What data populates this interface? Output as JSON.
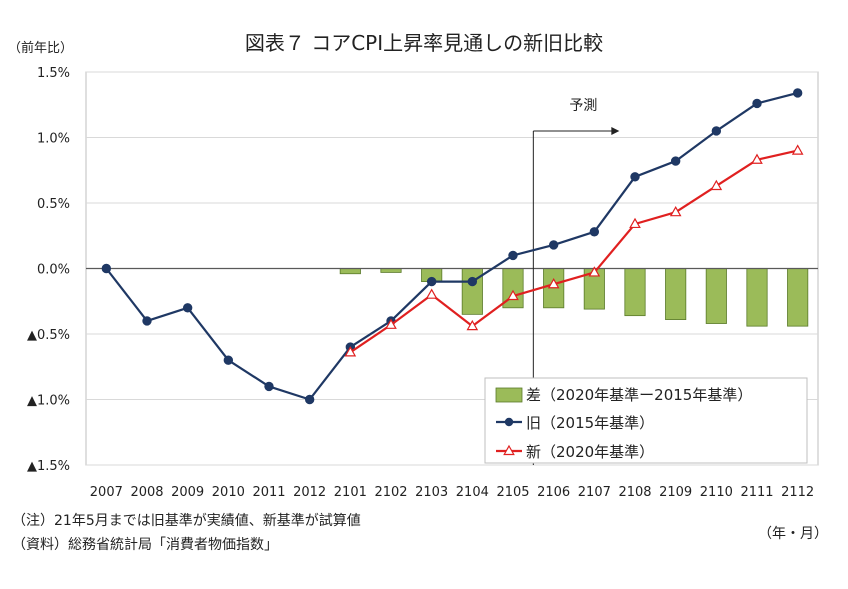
{
  "chart_data": {
    "type": "bar+line",
    "title": "図表７ コアCPI上昇率見通しの新旧比較",
    "ylabel": "（前年比）",
    "xlabel": "（年・月）",
    "categories": [
      "2007",
      "2008",
      "2009",
      "2010",
      "2011",
      "2012",
      "2101",
      "2102",
      "2103",
      "2104",
      "2105",
      "2106",
      "2107",
      "2108",
      "2109",
      "2110",
      "2111",
      "2112"
    ],
    "ylim": [
      -1.5,
      1.5
    ],
    "yticks": [
      1.5,
      1.0,
      0.5,
      0.0,
      -0.5,
      -1.0,
      -1.5
    ],
    "ytick_labels": [
      "1.5%",
      "1.0%",
      "0.5%",
      "0.0%",
      "▲0.5%",
      "▲1.0%",
      "▲1.5%"
    ],
    "grid": true,
    "legend_position": "bottom-right",
    "series": [
      {
        "name": "差（2020年基準ー2015年基準）",
        "type": "bar",
        "color": "#9BBB59",
        "values": [
          null,
          null,
          null,
          null,
          null,
          null,
          -0.04,
          -0.03,
          -0.1,
          -0.35,
          -0.3,
          -0.3,
          -0.31,
          -0.36,
          -0.39,
          -0.42,
          -0.44,
          -0.44
        ]
      },
      {
        "name": "旧（2015年基準）",
        "type": "line",
        "marker": "circle",
        "color": "#1F3864",
        "values": [
          0.0,
          -0.4,
          -0.3,
          -0.7,
          -0.9,
          -1.0,
          -0.6,
          -0.4,
          -0.1,
          -0.1,
          0.1,
          0.18,
          0.28,
          0.7,
          0.82,
          1.05,
          1.26,
          1.34
        ]
      },
      {
        "name": "新（2020年基準）",
        "type": "line",
        "marker": "triangle",
        "color": "#E02020",
        "values": [
          null,
          null,
          null,
          null,
          null,
          null,
          -0.64,
          -0.43,
          -0.2,
          -0.44,
          -0.21,
          -0.12,
          -0.03,
          0.34,
          0.43,
          0.63,
          0.83,
          0.9
        ]
      }
    ],
    "annotations": [
      {
        "text": "予測",
        "from_category": "2106"
      }
    ]
  },
  "notes": {
    "note1": "（注）21年5月までは旧基準が実績値、新基準が試算値",
    "note2": "（資料）総務省統計局「消費者物価指数」"
  }
}
